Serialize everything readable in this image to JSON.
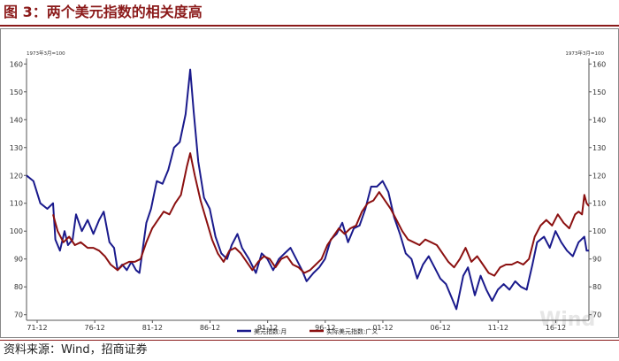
{
  "figure": {
    "title": "图 3：两个美元指数的相关度高",
    "source": "资料来源：Wind，招商证券",
    "watermark": "Wind"
  },
  "colors": {
    "title": "#8b1a1a",
    "series1": "#1a1a8c",
    "series2": "#8b1010"
  },
  "chart_data": {
    "type": "line",
    "left_unit_label": "1973年3月=100",
    "right_unit_label": "1973年3月=100",
    "ylim": [
      68,
      162
    ],
    "yticks": [
      70,
      80,
      90,
      100,
      110,
      120,
      130,
      140,
      150,
      160
    ],
    "xlim": [
      1971.0,
      2019.8
    ],
    "xticks": [
      {
        "x": 1971.92,
        "label": "71-12"
      },
      {
        "x": 1976.92,
        "label": "76-12"
      },
      {
        "x": 1981.92,
        "label": "81-12"
      },
      {
        "x": 1986.92,
        "label": "86-12"
      },
      {
        "x": 1991.92,
        "label": "91-12"
      },
      {
        "x": 1996.92,
        "label": "96-12"
      },
      {
        "x": 2001.92,
        "label": "01-12"
      },
      {
        "x": 2006.92,
        "label": "06-12"
      },
      {
        "x": 2011.92,
        "label": "11-12"
      },
      {
        "x": 2016.92,
        "label": "16-12"
      }
    ],
    "legend_position": "bottom-center",
    "series": [
      {
        "name": "美元指数:月",
        "color": "#1a1a8c",
        "points": [
          [
            1971.0,
            120
          ],
          [
            1971.6,
            118
          ],
          [
            1972.2,
            110
          ],
          [
            1972.8,
            108
          ],
          [
            1973.3,
            110
          ],
          [
            1973.5,
            97
          ],
          [
            1973.9,
            93
          ],
          [
            1974.3,
            100
          ],
          [
            1974.6,
            95
          ],
          [
            1975.0,
            97
          ],
          [
            1975.3,
            106
          ],
          [
            1975.8,
            100
          ],
          [
            1976.3,
            104
          ],
          [
            1976.8,
            99
          ],
          [
            1977.3,
            104
          ],
          [
            1977.7,
            107
          ],
          [
            1978.2,
            96
          ],
          [
            1978.6,
            94
          ],
          [
            1978.9,
            86
          ],
          [
            1979.3,
            88
          ],
          [
            1979.7,
            86
          ],
          [
            1980.1,
            89
          ],
          [
            1980.5,
            86
          ],
          [
            1980.8,
            85
          ],
          [
            1981.1,
            94
          ],
          [
            1981.4,
            103
          ],
          [
            1981.8,
            108
          ],
          [
            1982.3,
            118
          ],
          [
            1982.8,
            117
          ],
          [
            1983.3,
            122
          ],
          [
            1983.8,
            130
          ],
          [
            1984.3,
            132
          ],
          [
            1984.8,
            142
          ],
          [
            1985.2,
            158
          ],
          [
            1985.5,
            143
          ],
          [
            1985.9,
            125
          ],
          [
            1986.4,
            112
          ],
          [
            1986.9,
            108
          ],
          [
            1987.4,
            98
          ],
          [
            1987.9,
            92
          ],
          [
            1988.4,
            90
          ],
          [
            1988.8,
            95
          ],
          [
            1989.3,
            99
          ],
          [
            1989.7,
            94
          ],
          [
            1990.3,
            90
          ],
          [
            1990.9,
            85
          ],
          [
            1991.4,
            92
          ],
          [
            1991.9,
            90
          ],
          [
            1992.4,
            86
          ],
          [
            1992.9,
            90
          ],
          [
            1993.4,
            92
          ],
          [
            1993.9,
            94
          ],
          [
            1994.4,
            90
          ],
          [
            1994.9,
            86
          ],
          [
            1995.3,
            82
          ],
          [
            1995.9,
            85
          ],
          [
            1996.4,
            87
          ],
          [
            1996.9,
            90
          ],
          [
            1997.4,
            97
          ],
          [
            1997.9,
            99
          ],
          [
            1998.4,
            103
          ],
          [
            1998.9,
            96
          ],
          [
            1999.4,
            101
          ],
          [
            1999.9,
            102
          ],
          [
            2000.4,
            108
          ],
          [
            2000.9,
            116
          ],
          [
            2001.4,
            116
          ],
          [
            2001.9,
            118
          ],
          [
            2002.4,
            114
          ],
          [
            2002.9,
            105
          ],
          [
            2003.4,
            99
          ],
          [
            2003.9,
            92
          ],
          [
            2004.4,
            90
          ],
          [
            2004.9,
            83
          ],
          [
            2005.4,
            88
          ],
          [
            2005.9,
            91
          ],
          [
            2006.4,
            87
          ],
          [
            2006.9,
            83
          ],
          [
            2007.4,
            81
          ],
          [
            2007.9,
            76
          ],
          [
            2008.3,
            72
          ],
          [
            2008.9,
            84
          ],
          [
            2009.3,
            87
          ],
          [
            2009.9,
            77
          ],
          [
            2010.4,
            84
          ],
          [
            2010.9,
            79
          ],
          [
            2011.4,
            75
          ],
          [
            2011.9,
            79
          ],
          [
            2012.4,
            81
          ],
          [
            2012.9,
            79
          ],
          [
            2013.4,
            82
          ],
          [
            2013.9,
            80
          ],
          [
            2014.4,
            79
          ],
          [
            2014.9,
            88
          ],
          [
            2015.3,
            96
          ],
          [
            2015.9,
            98
          ],
          [
            2016.4,
            94
          ],
          [
            2016.9,
            100
          ],
          [
            2017.4,
            96
          ],
          [
            2017.9,
            93
          ],
          [
            2018.4,
            91
          ],
          [
            2018.9,
            96
          ],
          [
            2019.4,
            98
          ],
          [
            2019.6,
            93
          ],
          [
            2019.8,
            93
          ]
        ]
      },
      {
        "name": "实际美元指数:广义",
        "color": "#8b1010",
        "points": [
          [
            1973.3,
            106
          ],
          [
            1973.7,
            100
          ],
          [
            1974.2,
            96
          ],
          [
            1974.7,
            98
          ],
          [
            1975.2,
            95
          ],
          [
            1975.7,
            96
          ],
          [
            1976.3,
            94
          ],
          [
            1976.8,
            94
          ],
          [
            1977.3,
            93
          ],
          [
            1977.8,
            91
          ],
          [
            1978.3,
            88
          ],
          [
            1978.9,
            86
          ],
          [
            1979.4,
            88
          ],
          [
            1979.9,
            89
          ],
          [
            1980.4,
            89
          ],
          [
            1980.9,
            90
          ],
          [
            1981.4,
            96
          ],
          [
            1981.9,
            101
          ],
          [
            1982.4,
            104
          ],
          [
            1982.9,
            107
          ],
          [
            1983.4,
            106
          ],
          [
            1983.9,
            110
          ],
          [
            1984.4,
            113
          ],
          [
            1984.9,
            123
          ],
          [
            1985.2,
            128
          ],
          [
            1985.6,
            120
          ],
          [
            1986.1,
            111
          ],
          [
            1986.6,
            104
          ],
          [
            1987.1,
            97
          ],
          [
            1987.6,
            92
          ],
          [
            1988.1,
            89
          ],
          [
            1988.6,
            93
          ],
          [
            1989.1,
            94
          ],
          [
            1989.6,
            92
          ],
          [
            1990.1,
            89
          ],
          [
            1990.6,
            86
          ],
          [
            1991.1,
            89
          ],
          [
            1991.6,
            91
          ],
          [
            1992.1,
            90
          ],
          [
            1992.6,
            87
          ],
          [
            1993.1,
            90
          ],
          [
            1993.6,
            91
          ],
          [
            1994.1,
            88
          ],
          [
            1994.6,
            87
          ],
          [
            1995.1,
            85
          ],
          [
            1995.6,
            86
          ],
          [
            1996.1,
            88
          ],
          [
            1996.6,
            90
          ],
          [
            1997.1,
            95
          ],
          [
            1997.6,
            98
          ],
          [
            1998.1,
            101
          ],
          [
            1998.6,
            99
          ],
          [
            1999.1,
            101
          ],
          [
            1999.6,
            102
          ],
          [
            2000.1,
            107
          ],
          [
            2000.6,
            110
          ],
          [
            2001.1,
            111
          ],
          [
            2001.6,
            114
          ],
          [
            2002.1,
            111
          ],
          [
            2002.6,
            108
          ],
          [
            2003.1,
            104
          ],
          [
            2003.6,
            100
          ],
          [
            2004.1,
            97
          ],
          [
            2004.6,
            96
          ],
          [
            2005.1,
            95
          ],
          [
            2005.6,
            97
          ],
          [
            2006.1,
            96
          ],
          [
            2006.6,
            95
          ],
          [
            2007.1,
            92
          ],
          [
            2007.6,
            89
          ],
          [
            2008.1,
            87
          ],
          [
            2008.6,
            90
          ],
          [
            2009.1,
            94
          ],
          [
            2009.6,
            89
          ],
          [
            2010.1,
            91
          ],
          [
            2010.6,
            88
          ],
          [
            2011.1,
            85
          ],
          [
            2011.6,
            84
          ],
          [
            2012.1,
            87
          ],
          [
            2012.6,
            88
          ],
          [
            2013.1,
            88
          ],
          [
            2013.6,
            89
          ],
          [
            2014.1,
            88
          ],
          [
            2014.6,
            90
          ],
          [
            2015.1,
            98
          ],
          [
            2015.6,
            102
          ],
          [
            2016.1,
            104
          ],
          [
            2016.6,
            102
          ],
          [
            2017.1,
            106
          ],
          [
            2017.6,
            103
          ],
          [
            2018.1,
            101
          ],
          [
            2018.6,
            106
          ],
          [
            2018.9,
            107
          ],
          [
            2019.2,
            106
          ],
          [
            2019.4,
            113
          ],
          [
            2019.6,
            110
          ],
          [
            2019.8,
            109
          ]
        ]
      }
    ]
  }
}
